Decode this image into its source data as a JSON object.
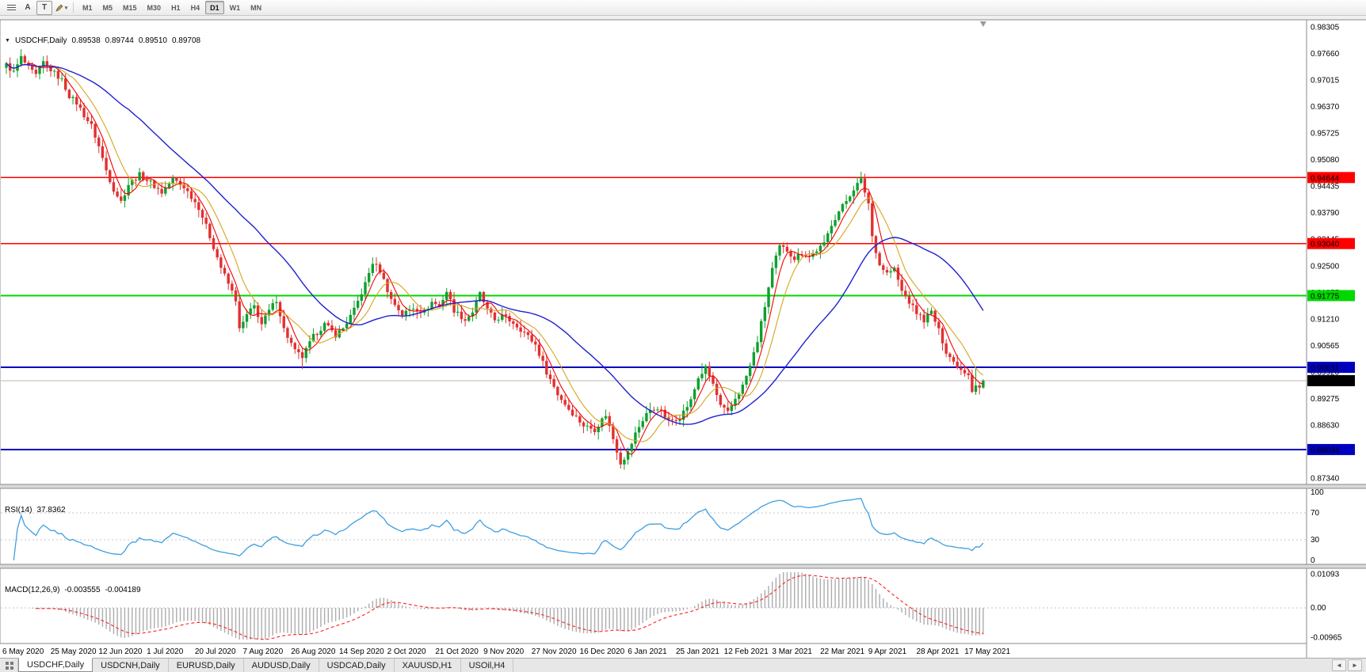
{
  "toolbar": {
    "a_label": "A",
    "t_label": "T",
    "timeframes": [
      "M1",
      "M5",
      "M15",
      "M30",
      "H1",
      "H4",
      "D1",
      "W1",
      "MN"
    ],
    "active_timeframe": "D1"
  },
  "chart": {
    "price_axis_ticks": [
      "0.98305",
      "0.97660",
      "0.97015",
      "0.96370",
      "0.95725",
      "0.95080",
      "0.94435",
      "0.93790",
      "0.93145",
      "0.92500",
      "0.91855",
      "0.91210",
      "0.90565",
      "0.89920",
      "0.89275",
      "0.88630",
      "0.87985",
      "0.87340"
    ]
  },
  "chart_data": {
    "type": "candlestick",
    "symbol": "USDCHF",
    "timeframe": "Daily",
    "title": {
      "symbol": "USDCHF,Daily",
      "open": "0.89538",
      "high": "0.89744",
      "low": "0.89510",
      "close": "0.89708"
    },
    "current_bar": {
      "open": 0.89538,
      "high": 0.89744,
      "low": 0.8951,
      "close": 0.89708
    },
    "bar_count": 265,
    "days_per_label": 13,
    "date_labels": [
      "6 May 2020",
      "25 May 2020",
      "12 Jun 2020",
      "1 Jul 2020",
      "20 Jul 2020",
      "7 Aug 2020",
      "26 Aug 2020",
      "14 Sep 2020",
      "2 Oct 2020",
      "21 Oct 2020",
      "9 Nov 2020",
      "27 Nov 2020",
      "16 Dec 2020",
      "6 Jan 2021",
      "25 Jan 2021",
      "12 Feb 2021",
      "3 Mar 2021",
      "22 Mar 2021",
      "9 Apr 2021",
      "28 Apr 2021",
      "17 May 2021"
    ],
    "anchors": [
      [
        0,
        0.9738
      ],
      [
        2,
        0.972
      ],
      [
        4,
        0.9756
      ],
      [
        6,
        0.973
      ],
      [
        8,
        0.9712
      ],
      [
        10,
        0.9744
      ],
      [
        13,
        0.9718
      ],
      [
        15,
        0.9701
      ],
      [
        17,
        0.9663
      ],
      [
        19,
        0.9646
      ],
      [
        21,
        0.9616
      ],
      [
        23,
        0.959
      ],
      [
        25,
        0.954
      ],
      [
        27,
        0.9482
      ],
      [
        29,
        0.9436
      ],
      [
        31,
        0.9406
      ],
      [
        33,
        0.9448
      ],
      [
        36,
        0.9471
      ],
      [
        39,
        0.9452
      ],
      [
        42,
        0.9428
      ],
      [
        45,
        0.9461
      ],
      [
        48,
        0.9442
      ],
      [
        50,
        0.9418
      ],
      [
        52,
        0.9392
      ],
      [
        54,
        0.9346
      ],
      [
        56,
        0.9296
      ],
      [
        58,
        0.9246
      ],
      [
        60,
        0.9206
      ],
      [
        62,
        0.9168
      ],
      [
        63,
        0.9094
      ],
      [
        65,
        0.913
      ],
      [
        67,
        0.9152
      ],
      [
        69,
        0.9108
      ],
      [
        71,
        0.914
      ],
      [
        73,
        0.9168
      ],
      [
        75,
        0.9096
      ],
      [
        78,
        0.9042
      ],
      [
        80,
        0.9028
      ],
      [
        83,
        0.9078
      ],
      [
        86,
        0.9108
      ],
      [
        89,
        0.9082
      ],
      [
        91,
        0.9098
      ],
      [
        94,
        0.9142
      ],
      [
        97,
        0.9206
      ],
      [
        99,
        0.9258
      ],
      [
        101,
        0.9238
      ],
      [
        104,
        0.9168
      ],
      [
        107,
        0.9132
      ],
      [
        110,
        0.9148
      ],
      [
        113,
        0.9138
      ],
      [
        115,
        0.9162
      ],
      [
        117,
        0.9152
      ],
      [
        119,
        0.9188
      ],
      [
        121,
        0.9142
      ],
      [
        124,
        0.9118
      ],
      [
        126,
        0.9138
      ],
      [
        128,
        0.9182
      ],
      [
        130,
        0.9142
      ],
      [
        132,
        0.9118
      ],
      [
        134,
        0.9128
      ],
      [
        137,
        0.9112
      ],
      [
        140,
        0.9088
      ],
      [
        143,
        0.9058
      ],
      [
        146,
        0.8992
      ],
      [
        149,
        0.8938
      ],
      [
        152,
        0.8902
      ],
      [
        156,
        0.8862
      ],
      [
        159,
        0.8852
      ],
      [
        162,
        0.8888
      ],
      [
        164,
        0.883
      ],
      [
        166,
        0.8772
      ],
      [
        168,
        0.8796
      ],
      [
        170,
        0.8842
      ],
      [
        173,
        0.8892
      ],
      [
        176,
        0.8906
      ],
      [
        179,
        0.8872
      ],
      [
        182,
        0.8882
      ],
      [
        185,
        0.8922
      ],
      [
        187,
        0.8978
      ],
      [
        189,
        0.9001
      ],
      [
        191,
        0.8962
      ],
      [
        193,
        0.8908
      ],
      [
        195,
        0.8892
      ],
      [
        197,
        0.8928
      ],
      [
        199,
        0.8958
      ],
      [
        201,
        0.9006
      ],
      [
        203,
        0.9068
      ],
      [
        205,
        0.9152
      ],
      [
        207,
        0.9242
      ],
      [
        209,
        0.9296
      ],
      [
        211,
        0.9288
      ],
      [
        213,
        0.9268
      ],
      [
        215,
        0.9282
      ],
      [
        217,
        0.9272
      ],
      [
        219,
        0.9288
      ],
      [
        221,
        0.9302
      ],
      [
        223,
        0.9352
      ],
      [
        225,
        0.9382
      ],
      [
        227,
        0.9408
      ],
      [
        229,
        0.9438
      ],
      [
        231,
        0.9458
      ],
      [
        233,
        0.9402
      ],
      [
        234,
        0.9322
      ],
      [
        236,
        0.9252
      ],
      [
        238,
        0.9232
      ],
      [
        240,
        0.9242
      ],
      [
        242,
        0.9188
      ],
      [
        244,
        0.9162
      ],
      [
        246,
        0.9136
      ],
      [
        248,
        0.9118
      ],
      [
        250,
        0.9138
      ],
      [
        252,
        0.9092
      ],
      [
        254,
        0.9042
      ],
      [
        256,
        0.9016
      ],
      [
        258,
        0.8998
      ],
      [
        260,
        0.8988
      ],
      [
        261,
        0.8948
      ],
      [
        262,
        0.8962
      ],
      [
        263,
        0.8954
      ],
      [
        264,
        0.8971
      ]
    ],
    "extremes": [
      {
        "bar": 80,
        "low": 0.8999
      },
      {
        "bar": 166,
        "low": 0.8757
      },
      {
        "bar": 188,
        "high": 0.9013
      },
      {
        "bar": 231,
        "high": 0.9473
      },
      {
        "bar": 262,
        "high": 0.9001
      }
    ],
    "hlines": [
      {
        "price": 0.94644,
        "label": "0.94644",
        "color": "#FF0000",
        "width": 1.3
      },
      {
        "price": 0.9304,
        "label": "0.93040",
        "color": "#FF0000",
        "width": 1.3
      },
      {
        "price": 0.91775,
        "label": "0.91775",
        "color": "#00D800",
        "width": 2
      },
      {
        "price": 0.90031,
        "label": "0.90031",
        "color": "#0000BE",
        "width": 2
      },
      {
        "price": 0.88034,
        "label": "0.88034",
        "color": "#0000BE",
        "width": 2
      }
    ],
    "bid_line": {
      "price": 0.89708,
      "label": "0.89708"
    },
    "moving_averages": [
      {
        "period": 5,
        "color": "#F50000",
        "width": 1.1
      },
      {
        "period": 10,
        "color": "#D6A51E",
        "width": 1.1
      },
      {
        "period": 34,
        "color": "#2020D0",
        "width": 1.4
      }
    ],
    "rsi": {
      "label": "RSI(14)",
      "value": "37.8362",
      "period": 14,
      "levels": [
        "100",
        "70",
        "30",
        "0"
      ],
      "level_values": [
        100,
        70,
        30,
        0
      ],
      "dotted_levels": [
        70,
        30
      ]
    },
    "macd": {
      "label": "MACD(12,26,9)",
      "value_main": "-0.003555",
      "value_signal": "-0.004189",
      "fast": 12,
      "slow": 26,
      "signal": 9,
      "axis_labels": [
        {
          "text": "0.01093",
          "value": 0.01093
        },
        {
          "text": "0.00",
          "value": 0
        },
        {
          "text": "-0.00965",
          "value": -0.00965
        }
      ],
      "axis_max": 0.0116,
      "axis_min": -0.0103
    }
  },
  "colors": {
    "up": "#0EA02E",
    "down": "#E13030",
    "rsi": "#3F9EDF",
    "macd_hist": "#ACACAC",
    "macd_signal": "#FF2020",
    "bid_line": "#B8B8B8",
    "bid_box": "#000000",
    "border": "#8a8a8a",
    "grid_dotted": "#c4c4c4"
  },
  "tabs": {
    "items": [
      "USDCHF,Daily",
      "USDCNH,Daily",
      "EURUSD,Daily",
      "AUDUSD,Daily",
      "USDCAD,Daily",
      "XAUUSD,H1",
      "USOil,H4"
    ],
    "active_index": 0
  }
}
